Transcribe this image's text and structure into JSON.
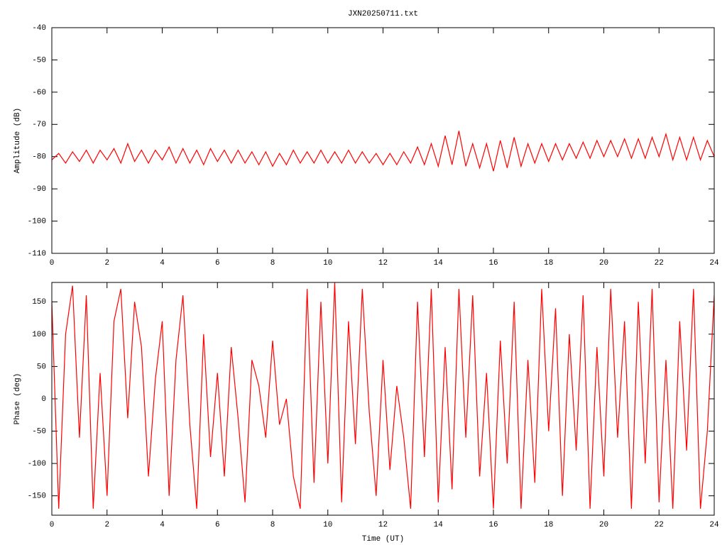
{
  "chart_data": [
    {
      "type": "line",
      "title": "JXN20250711.txt",
      "y_label": "Amplitude (dB)",
      "color": "#ff0000",
      "xlim": [
        0,
        24
      ],
      "xticks": [
        0,
        2,
        4,
        6,
        8,
        10,
        12,
        14,
        16,
        18,
        20,
        22,
        24
      ],
      "ylim": [
        -110,
        -40
      ],
      "yticks": [
        -110,
        -100,
        -90,
        -80,
        -70,
        -60,
        -50,
        -40
      ],
      "x": [
        0,
        0.25,
        0.5,
        0.75,
        1,
        1.25,
        1.5,
        1.75,
        2,
        2.25,
        2.5,
        2.75,
        3,
        3.25,
        3.5,
        3.75,
        4,
        4.25,
        4.5,
        4.75,
        5,
        5.25,
        5.5,
        5.75,
        6,
        6.25,
        6.5,
        6.75,
        7,
        7.25,
        7.5,
        7.75,
        8,
        8.25,
        8.5,
        8.75,
        9,
        9.25,
        9.5,
        9.75,
        10,
        10.25,
        10.5,
        10.75,
        11,
        11.25,
        11.5,
        11.75,
        12,
        12.25,
        12.5,
        12.75,
        13,
        13.25,
        13.5,
        13.75,
        14,
        14.25,
        14.5,
        14.75,
        15,
        15.25,
        15.5,
        15.75,
        16,
        16.25,
        16.5,
        16.75,
        17,
        17.25,
        17.5,
        17.75,
        18,
        18.25,
        18.5,
        18.75,
        19,
        19.25,
        19.5,
        19.75,
        20,
        20.25,
        20.5,
        20.75,
        21,
        21.25,
        21.5,
        21.75,
        22,
        22.25,
        22.5,
        22.75,
        23,
        23.25,
        23.5,
        23.75,
        24
      ],
      "values": [
        -81,
        -79,
        -82,
        -78.5,
        -81.5,
        -78,
        -82,
        -78,
        -81,
        -77.5,
        -82,
        -76,
        -81.5,
        -78,
        -82,
        -78,
        -81,
        -77,
        -82,
        -77.5,
        -82,
        -78,
        -82.5,
        -77.5,
        -81.5,
        -78,
        -82,
        -78,
        -82,
        -78.5,
        -82.5,
        -78.5,
        -83,
        -79,
        -82.5,
        -78,
        -82,
        -78.5,
        -82,
        -78,
        -82,
        -78.5,
        -82,
        -78,
        -82,
        -78.5,
        -82,
        -79,
        -82.5,
        -79,
        -82.5,
        -78.5,
        -82,
        -77,
        -82.5,
        -76,
        -83,
        -73.5,
        -82.5,
        -72,
        -83,
        -76,
        -83.5,
        -76,
        -84.5,
        -75,
        -83.5,
        -74,
        -83,
        -76,
        -82,
        -76,
        -81.5,
        -76,
        -81,
        -76,
        -80.5,
        -75.5,
        -80.5,
        -75,
        -80,
        -75,
        -80,
        -74.5,
        -80.5,
        -74.5,
        -80.5,
        -74,
        -80,
        -73,
        -81,
        -74,
        -81,
        -74,
        -81,
        -75,
        -80
      ]
    },
    {
      "type": "line",
      "y_label": "Phase (deg)",
      "x_label": "Time (UT)",
      "color": "#ff0000",
      "xlim": [
        0,
        24
      ],
      "xticks": [
        0,
        2,
        4,
        6,
        8,
        10,
        12,
        14,
        16,
        18,
        20,
        22,
        24
      ],
      "ylim": [
        -180,
        180
      ],
      "yticks": [
        -150,
        -100,
        -50,
        0,
        50,
        100,
        150
      ],
      "x": [
        0,
        0.25,
        0.5,
        0.75,
        1,
        1.25,
        1.5,
        1.75,
        2,
        2.25,
        2.5,
        2.75,
        3,
        3.25,
        3.5,
        3.75,
        4,
        4.25,
        4.5,
        4.75,
        5,
        5.25,
        5.5,
        5.75,
        6,
        6.25,
        6.5,
        6.75,
        7,
        7.25,
        7.5,
        7.75,
        8,
        8.25,
        8.5,
        8.75,
        9,
        9.25,
        9.5,
        9.75,
        10,
        10.25,
        10.5,
        10.75,
        11,
        11.25,
        11.5,
        11.75,
        12,
        12.25,
        12.5,
        12.75,
        13,
        13.25,
        13.5,
        13.75,
        14,
        14.25,
        14.5,
        14.75,
        15,
        15.25,
        15.5,
        15.75,
        16,
        16.25,
        16.5,
        16.75,
        17,
        17.25,
        17.5,
        17.75,
        18,
        18.25,
        18.5,
        18.75,
        19,
        19.25,
        19.5,
        19.75,
        20,
        20.25,
        20.5,
        20.75,
        21,
        21.25,
        21.5,
        21.75,
        22,
        22.25,
        22.5,
        22.75,
        23,
        23.25,
        23.5,
        23.75,
        24
      ],
      "values": [
        150,
        -170,
        100,
        175,
        -60,
        160,
        -170,
        40,
        -150,
        120,
        170,
        -30,
        150,
        80,
        -120,
        30,
        120,
        -150,
        60,
        160,
        -40,
        -170,
        100,
        -90,
        40,
        -120,
        80,
        -30,
        -160,
        60,
        20,
        -60,
        90,
        -40,
        0,
        -120,
        -170,
        170,
        -130,
        150,
        -100,
        180,
        -160,
        120,
        -70,
        170,
        -20,
        -150,
        60,
        -110,
        20,
        -60,
        -170,
        150,
        -90,
        170,
        -160,
        80,
        -140,
        170,
        -60,
        160,
        -120,
        40,
        -170,
        90,
        -100,
        150,
        -170,
        60,
        -130,
        170,
        -50,
        140,
        -150,
        100,
        -80,
        160,
        -170,
        80,
        -120,
        170,
        -60,
        120,
        -170,
        150,
        -100,
        170,
        -160,
        60,
        -170,
        120,
        -80,
        170,
        -170,
        -50,
        160
      ]
    }
  ]
}
